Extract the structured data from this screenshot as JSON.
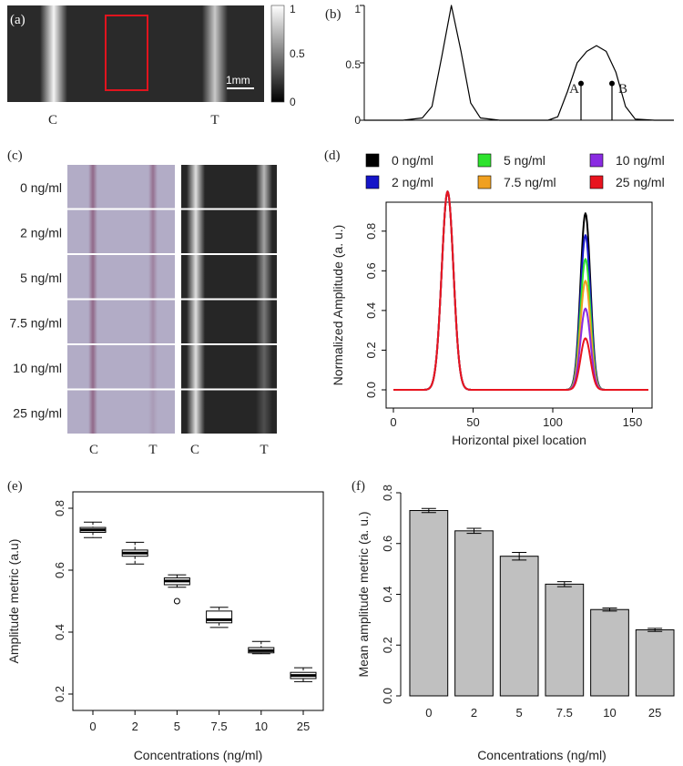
{
  "panels": {
    "a": {
      "label": "(a)",
      "colorbar_ticks": [
        "1",
        "0.5",
        "0"
      ],
      "scale_bar_label": "1mm",
      "line_labels": [
        "C",
        "T"
      ],
      "roi_color": "#e0141e"
    },
    "b": {
      "label": "(b)",
      "y_ticks": [
        "1",
        "0.5",
        "0"
      ],
      "markers": [
        "A",
        "B"
      ]
    },
    "c": {
      "label": "(c)",
      "rows": [
        "0 ng/ml",
        "2 ng/ml",
        "5 ng/ml",
        "7.5 ng/ml",
        "10 ng/ml",
        "25 ng/ml"
      ],
      "photo_labels": [
        "C",
        "T"
      ],
      "processed_labels": [
        "C",
        "T"
      ],
      "strip_color": "#b2acc6"
    },
    "d": {
      "label": "(d)"
    },
    "e": {
      "label": "(e)"
    },
    "f": {
      "label": "(f)"
    }
  },
  "chart_data": [
    {
      "panel": "b",
      "type": "line",
      "x": [
        0,
        10,
        20,
        30,
        35,
        40,
        45,
        50,
        55,
        60,
        70,
        80,
        90,
        95,
        100,
        105,
        110,
        115,
        120,
        125,
        130,
        135,
        140,
        150,
        160
      ],
      "series": [
        {
          "values": [
            0,
            0,
            0,
            0.02,
            0.12,
            0.55,
            1.0,
            0.6,
            0.15,
            0.02,
            0,
            0,
            0,
            0,
            0.03,
            0.25,
            0.5,
            0.6,
            0.65,
            0.6,
            0.42,
            0.12,
            0.01,
            0,
            0
          ]
        }
      ],
      "ylim": [
        0,
        1
      ],
      "annotations": [
        {
          "label": "A",
          "x": 112,
          "y": 0.32
        },
        {
          "label": "B",
          "x": 128,
          "y": 0.32
        }
      ]
    },
    {
      "panel": "d",
      "type": "line",
      "xlabel": "Horizontal pixel location",
      "ylabel": "Normalized Amplitude (a. u.)",
      "xlim": [
        0,
        160
      ],
      "ylim": [
        0,
        0.9
      ],
      "x_ticks": [
        0,
        50,
        100,
        150
      ],
      "y_ticks": [
        0.0,
        0.2,
        0.4,
        0.6,
        0.8
      ],
      "legend_position": "top",
      "series": [
        {
          "name": "0 ng/ml",
          "color": "#000000",
          "peak": 0.89
        },
        {
          "name": "2 ng/ml",
          "color": "#1515c8",
          "peak": 0.78
        },
        {
          "name": "5 ng/ml",
          "color": "#2ee32e",
          "peak": 0.66
        },
        {
          "name": "7.5 ng/ml",
          "color": "#f0a020",
          "peak": 0.55
        },
        {
          "name": "10 ng/ml",
          "color": "#8a2be2",
          "peak": 0.41
        },
        {
          "name": "25 ng/ml",
          "color": "#e8141e",
          "peak": 0.26
        }
      ]
    },
    {
      "panel": "e",
      "type": "box",
      "xlabel": "Concentrations (ng/ml)",
      "ylabel": "Amplitude metric (a.u)",
      "categories": [
        "0",
        "2",
        "5",
        "7.5",
        "10",
        "25"
      ],
      "ylim": [
        0.2,
        0.8
      ],
      "y_ticks": [
        0.2,
        0.4,
        0.6,
        0.8
      ],
      "boxes": [
        {
          "min": 0.705,
          "q1": 0.722,
          "median": 0.73,
          "q3": 0.738,
          "max": 0.755
        },
        {
          "min": 0.62,
          "q1": 0.645,
          "median": 0.655,
          "q3": 0.665,
          "max": 0.69
        },
        {
          "min": 0.545,
          "q1": 0.553,
          "median": 0.565,
          "q3": 0.575,
          "max": 0.585,
          "outliers": [
            0.5
          ]
        },
        {
          "min": 0.415,
          "q1": 0.43,
          "median": 0.44,
          "q3": 0.468,
          "max": 0.48
        },
        {
          "min": 0.33,
          "q1": 0.333,
          "median": 0.34,
          "q3": 0.35,
          "max": 0.37
        },
        {
          "min": 0.24,
          "q1": 0.25,
          "median": 0.26,
          "q3": 0.27,
          "max": 0.285
        }
      ]
    },
    {
      "panel": "f",
      "type": "bar",
      "xlabel": "Concentrations (ng/ml)",
      "ylabel": "Mean amplitude metric (a. u.)",
      "categories": [
        "0",
        "2",
        "5",
        "7.5",
        "10",
        "25"
      ],
      "values": [
        0.73,
        0.65,
        0.55,
        0.44,
        0.34,
        0.26
      ],
      "errors": [
        0.008,
        0.01,
        0.015,
        0.01,
        0.006,
        0.006
      ],
      "ylim": [
        0,
        0.8
      ],
      "y_ticks": [
        0.0,
        0.2,
        0.4,
        0.6,
        0.8
      ],
      "bar_color": "#c0c0c0"
    }
  ]
}
